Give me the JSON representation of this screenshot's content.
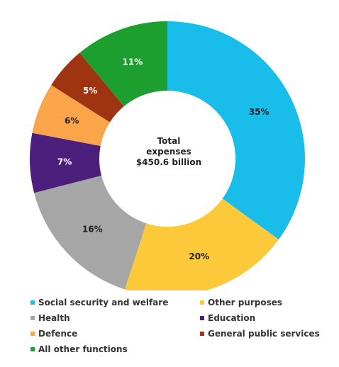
{
  "chart_data": {
    "type": "pie",
    "title": "",
    "center_label": [
      "Total",
      "expenses",
      "$450.6 billion"
    ],
    "legend_placement": "bottom",
    "slices": [
      {
        "name": "Social security and welfare",
        "value": 35,
        "label": "35%",
        "color": "#18bde9",
        "label_color": "#222222"
      },
      {
        "name": "Other purposes",
        "value": 20,
        "label": "20%",
        "color": "#fcc93b",
        "label_color": "#222222"
      },
      {
        "name": "Health",
        "value": 16,
        "label": "16%",
        "color": "#a6a6a6",
        "label_color": "#222222"
      },
      {
        "name": "Education",
        "value": 7,
        "label": "7%",
        "color": "#4d1f7c",
        "label_color": "#ffffff"
      },
      {
        "name": "Defence",
        "value": 6,
        "label": "6%",
        "color": "#fba54a",
        "label_color": "#222222"
      },
      {
        "name": "General public services",
        "value": 5,
        "label": "5%",
        "color": "#9e3411",
        "label_color": "#ffffff"
      },
      {
        "name": "All other functions",
        "value": 11,
        "label": "11%",
        "color": "#1d9f2f",
        "label_color": "#ffffff"
      }
    ]
  }
}
